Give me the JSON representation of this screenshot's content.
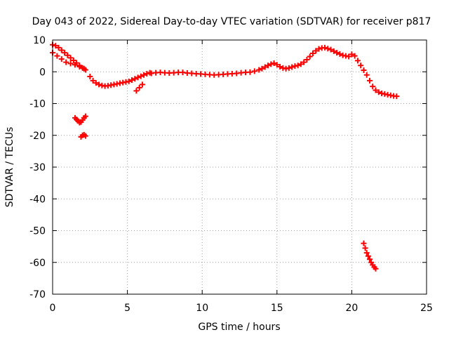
{
  "chart_data": {
    "type": "scatter",
    "title": "Day 043 of 2022, Sidereal Day-to-day VTEC variation (SDTVAR) for receiver p817",
    "xlabel": "GPS time / hours",
    "ylabel": "SDTVAR / TECUs",
    "xlim": [
      0,
      25
    ],
    "ylim": [
      -70,
      10
    ],
    "xticks": [
      0,
      5,
      10,
      15,
      20,
      25
    ],
    "yticks": [
      10,
      0,
      -10,
      -20,
      -30,
      -40,
      -50,
      -60,
      -70
    ],
    "grid": true,
    "marker": "+",
    "series": [
      {
        "name": "SDTVAR",
        "color": "#ff0000",
        "x": [
          0.0,
          0.2,
          0.4,
          0.6,
          0.8,
          1.0,
          1.2,
          1.4,
          1.6,
          1.8,
          2.0,
          2.2,
          0.0,
          0.3,
          0.6,
          0.9,
          1.2,
          1.5,
          1.8,
          2.1,
          2.5,
          2.7,
          2.9,
          3.1,
          3.3,
          3.5,
          3.7,
          3.9,
          4.1,
          4.3,
          4.5,
          4.7,
          4.9,
          5.1,
          5.3,
          5.5,
          5.7,
          5.9,
          6.1,
          6.3,
          6.5,
          5.6,
          5.8,
          6.0,
          6.6,
          6.9,
          7.2,
          7.5,
          7.8,
          8.1,
          8.4,
          8.7,
          9.0,
          9.3,
          9.6,
          9.9,
          10.2,
          10.5,
          10.8,
          11.1,
          11.4,
          11.7,
          12.0,
          12.3,
          12.6,
          12.9,
          13.2,
          13.5,
          13.8,
          14.0,
          14.2,
          14.4,
          14.6,
          14.8,
          15.0,
          15.2,
          15.4,
          15.6,
          15.8,
          16.0,
          16.2,
          16.4,
          16.6,
          16.8,
          17.0,
          17.2,
          17.4,
          17.6,
          17.8,
          18.0,
          18.2,
          18.4,
          18.6,
          18.8,
          19.0,
          19.2,
          19.4,
          19.6,
          19.8,
          20.0,
          20.2,
          20.4,
          20.6,
          20.8,
          21.0,
          21.2,
          21.4,
          21.6,
          21.8,
          22.0,
          22.2,
          22.4,
          22.6,
          22.8,
          23.0,
          1.5,
          1.6,
          1.7,
          1.8,
          1.9,
          2.0,
          2.1,
          2.2,
          1.9,
          2.0,
          2.1,
          2.2,
          20.8,
          20.9,
          21.0,
          21.1,
          21.2,
          21.3,
          21.4,
          21.5,
          21.6
        ],
        "y": [
          8.5,
          8.2,
          7.6,
          6.8,
          6.0,
          5.2,
          4.4,
          3.6,
          2.8,
          2.0,
          1.2,
          0.6,
          6.0,
          5.0,
          4.0,
          3.0,
          2.6,
          2.2,
          1.6,
          1.0,
          -1.5,
          -2.8,
          -3.5,
          -4.0,
          -4.3,
          -4.5,
          -4.4,
          -4.2,
          -4.0,
          -3.8,
          -3.6,
          -3.4,
          -3.2,
          -3.0,
          -2.6,
          -2.2,
          -1.8,
          -1.4,
          -1.0,
          -0.6,
          -0.3,
          -6.0,
          -5.0,
          -4.0,
          -0.5,
          -0.3,
          -0.2,
          -0.3,
          -0.4,
          -0.3,
          -0.2,
          -0.2,
          -0.4,
          -0.5,
          -0.6,
          -0.7,
          -0.8,
          -0.9,
          -1.0,
          -0.9,
          -0.8,
          -0.7,
          -0.6,
          -0.5,
          -0.3,
          -0.2,
          -0.1,
          0.2,
          0.6,
          1.0,
          1.5,
          2.0,
          2.4,
          2.7,
          2.2,
          1.6,
          1.2,
          1.0,
          1.2,
          1.5,
          1.8,
          2.0,
          2.4,
          3.0,
          3.8,
          4.8,
          5.8,
          6.6,
          7.2,
          7.5,
          7.6,
          7.3,
          7.0,
          6.5,
          6.0,
          5.6,
          5.2,
          5.0,
          4.8,
          5.5,
          5.0,
          3.5,
          2.0,
          0.5,
          -1.0,
          -2.8,
          -4.6,
          -5.8,
          -6.4,
          -6.8,
          -7.0,
          -7.2,
          -7.4,
          -7.6,
          -7.7,
          -14.5,
          -15.0,
          -15.5,
          -16.0,
          -15.8,
          -15.2,
          -14.5,
          -14.0,
          -20.5,
          -20.0,
          -19.8,
          -20.2,
          -54.0,
          -55.5,
          -57.0,
          -58.0,
          -59.0,
          -60.0,
          -60.8,
          -61.5,
          -62.0
        ]
      }
    ]
  }
}
